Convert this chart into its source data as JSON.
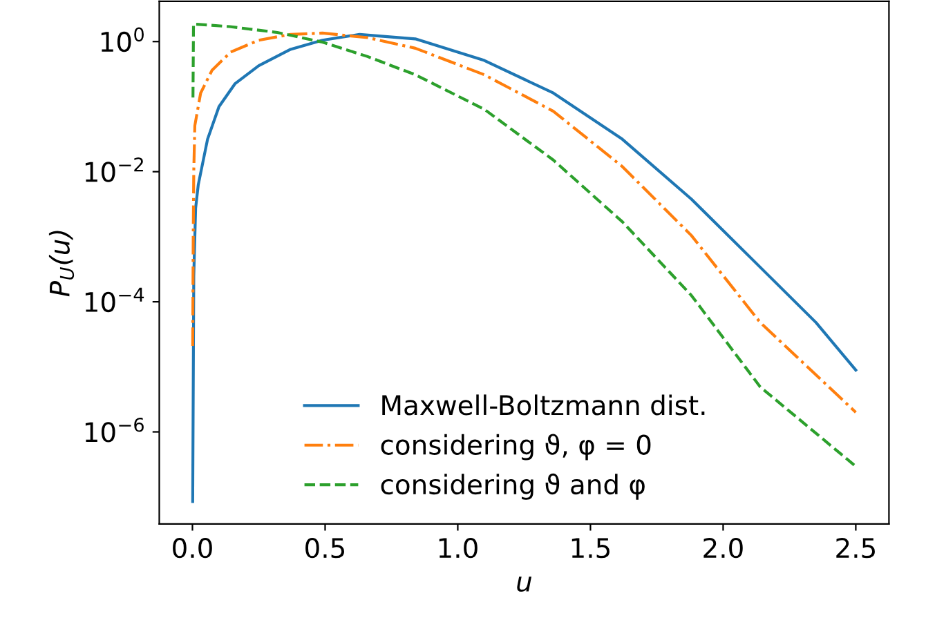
{
  "chart_data": {
    "type": "line",
    "xlabel": "u",
    "ylabel": "P$_{U}$(u)",
    "log": "y",
    "xlim": [
      -0.125,
      2.625
    ],
    "xticks": [
      {
        "value": 0,
        "label": "0.0"
      },
      0.5,
      {
        "value": 1,
        "label": "1.0"
      },
      1.5,
      {
        "value": 2,
        "label": "2.0"
      },
      2.5
    ],
    "ylim": [
      3.85e-08,
      4.17
    ],
    "yticks": [
      {
        "value": 1,
        "label": "10$^{0}$"
      },
      {
        "value": 0.01,
        "label": "10$^{−2}$"
      },
      {
        "value": 0.0001,
        "label": "10$^{−4}$"
      },
      {
        "value": 1e-06,
        "label": "10$^{−6}$"
      }
    ],
    "grid": false,
    "legend": "bottom",
    "series": [
      {
        "name": "Maxwell-Boltzmann dist.",
        "color": "#1f77b4",
        "line_style": "solid",
        "x": [
          0.001,
          0.005,
          0.012,
          0.022,
          0.057,
          0.1,
          0.16,
          0.25,
          0.37,
          0.49,
          0.63,
          0.84,
          1.1,
          1.36,
          1.62,
          1.88,
          2.14,
          2.35,
          2.5
        ],
        "values": [
          8.5e-08,
          0.00025,
          0.00275,
          0.0063,
          0.0316,
          0.1,
          0.224,
          0.427,
          0.76,
          1.05,
          1.29,
          1.1,
          0.513,
          0.162,
          0.0316,
          0.0038,
          0.000339,
          4.8e-05,
          8.9e-06
        ]
      },
      {
        "name": "considering ϑ, φ = 0",
        "color": "#ff7f0e",
        "line_style": "dashdot",
        "x": [
          0.001,
          0.003,
          0.005,
          0.009,
          0.031,
          0.074,
          0.144,
          0.25,
          0.37,
          0.49,
          0.66,
          0.84,
          1.1,
          1.36,
          1.62,
          1.88,
          2.14,
          2.5
        ],
        "values": [
          2.1e-05,
          0.001,
          0.01,
          0.051,
          0.162,
          0.363,
          0.69,
          1.05,
          1.29,
          1.35,
          1.15,
          0.79,
          0.309,
          0.085,
          0.012,
          0.00105,
          4.8e-05,
          2e-06
        ]
      },
      {
        "name": "considering ϑ and φ",
        "color": "#2ca02c",
        "line_style": "dashed",
        "x": [
          0.002,
          0.004,
          0.14,
          0.32,
          0.49,
          0.66,
          0.84,
          1.1,
          1.36,
          1.62,
          1.88,
          2.14,
          2.5
        ],
        "values": [
          0.138,
          1.86,
          1.7,
          1.38,
          0.98,
          0.589,
          0.309,
          0.091,
          0.0151,
          0.0017,
          0.000126,
          4.9e-06,
          2.95e-07
        ]
      }
    ]
  }
}
